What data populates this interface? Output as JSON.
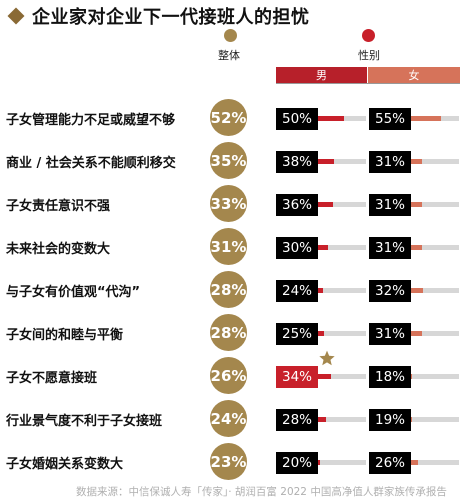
{
  "title": "企业家对企业下一代接班人的担忧",
  "legend": {
    "overall": "整体",
    "gender": "性别"
  },
  "gender_headers": {
    "male": "男",
    "female": "女"
  },
  "colors": {
    "overall": "#a4874d",
    "male": "#c8202a",
    "female": "#d6735a",
    "track": "#d7d7d7"
  },
  "scale_max": 100,
  "chart_data": {
    "type": "bar",
    "title": "企业家对企业下一代接班人的担忧",
    "categories": [
      "子女管理能力不足或威望不够",
      "商业 / 社会关系不能顺利移交",
      "子女责任意识不强",
      "未来社会的变数大",
      "与子女有价值观“代沟”",
      "子女间的和睦与平衡",
      "子女不愿意接班",
      "行业景气度不利于子女接班",
      "子女婚姻关系变数大"
    ],
    "series": [
      {
        "name": "整体",
        "values": [
          52,
          35,
          33,
          31,
          28,
          28,
          26,
          24,
          23
        ]
      },
      {
        "name": "男",
        "values": [
          50,
          38,
          36,
          30,
          24,
          25,
          34,
          28,
          20
        ]
      },
      {
        "name": "女",
        "values": [
          55,
          31,
          31,
          31,
          32,
          31,
          18,
          19,
          26
        ]
      }
    ],
    "labels": {
      "overall": [
        "52%",
        "35%",
        "33%",
        "31%",
        "28%",
        "28%",
        "26%",
        "24%",
        "23%"
      ],
      "male": [
        "50%",
        "38%",
        "36%",
        "30%",
        "24%",
        "25%",
        "34%",
        "28%",
        "20%"
      ],
      "female": [
        "55%",
        "31%",
        "31%",
        "31%",
        "32%",
        "31%",
        "18%",
        "19%",
        "26%"
      ]
    },
    "highlight": {
      "series": "男",
      "category": "子女不愿意接班",
      "marker": "star"
    }
  },
  "source": "数据来源：中信保诚人寿「传家」· 胡润百富 2022 中国高净值人群家族传承报告"
}
